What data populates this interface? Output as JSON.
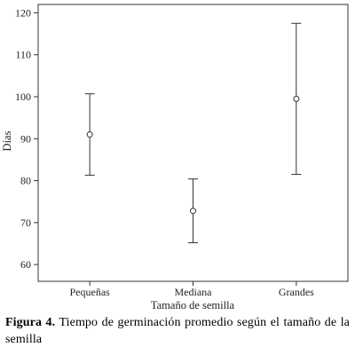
{
  "chart_data": {
    "type": "errorbar",
    "categories": [
      "Pequeñas",
      "Mediana",
      "Grandes"
    ],
    "points": [
      {
        "category": "Pequeñas",
        "mean": 91,
        "lower": 81.3,
        "upper": 100.7
      },
      {
        "category": "Mediana",
        "mean": 72.8,
        "lower": 65.2,
        "upper": 80.4
      },
      {
        "category": "Grandes",
        "mean": 99.5,
        "lower": 81.5,
        "upper": 117.5
      }
    ],
    "xlabel": "Tamaño de semilla",
    "ylabel": "Días",
    "ylim": [
      56,
      122
    ],
    "yticks": [
      60,
      70,
      80,
      90,
      100,
      110,
      120
    ],
    "grid": false,
    "legend": false
  },
  "caption": {
    "label": "Figura 4.",
    "text": "Tiempo de germinación promedio según el tamaño de la semilla"
  }
}
